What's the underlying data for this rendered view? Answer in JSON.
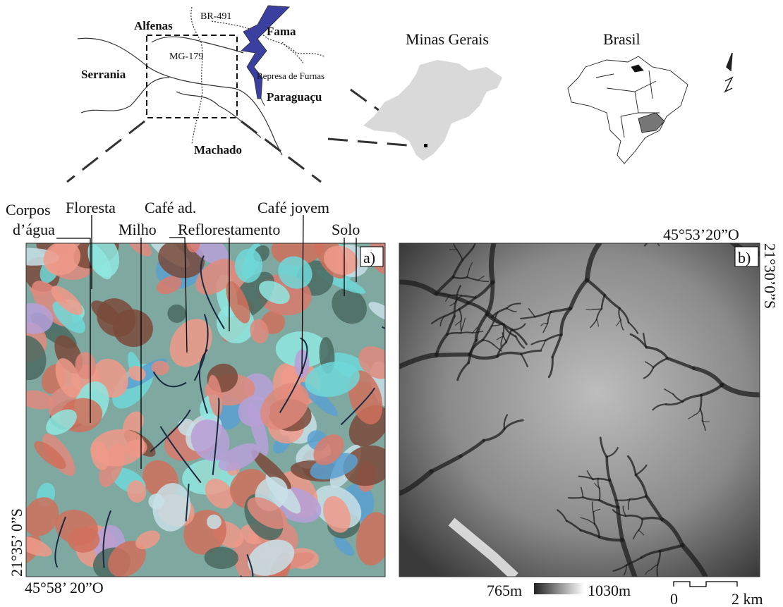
{
  "locator": {
    "alfenas": "Alfenas",
    "br491": "BR-491",
    "fama": "Fama",
    "mg179": "MG-179",
    "serrania": "Serrania",
    "represa": "Represa de Furnas",
    "paraguacu": "Paraguaçu",
    "machado": "Machado"
  },
  "state_map": {
    "title": "Minas Gerais"
  },
  "country_map": {
    "title": "Brasil"
  },
  "panel_a": {
    "labels": {
      "corpos_line1": "Corpos",
      "corpos_line2": "d’água",
      "floresta": "Floresta",
      "cafe_ad": "Café ad.",
      "cafe_jovem": "Café jovem",
      "milho": "Milho",
      "reflorestamento": "Reflorestamento",
      "solo": "Solo"
    },
    "tag": "a)",
    "lat": "21°35’ 0”S",
    "lon": "45°58’ 20”O"
  },
  "panel_b": {
    "tag": "b)",
    "lon": "45°53’20”O",
    "lat": "21°30’0”S",
    "legend": {
      "min": "765m",
      "max": "1030m"
    },
    "scale_bar": {
      "start": "0",
      "end": "2 km"
    }
  }
}
